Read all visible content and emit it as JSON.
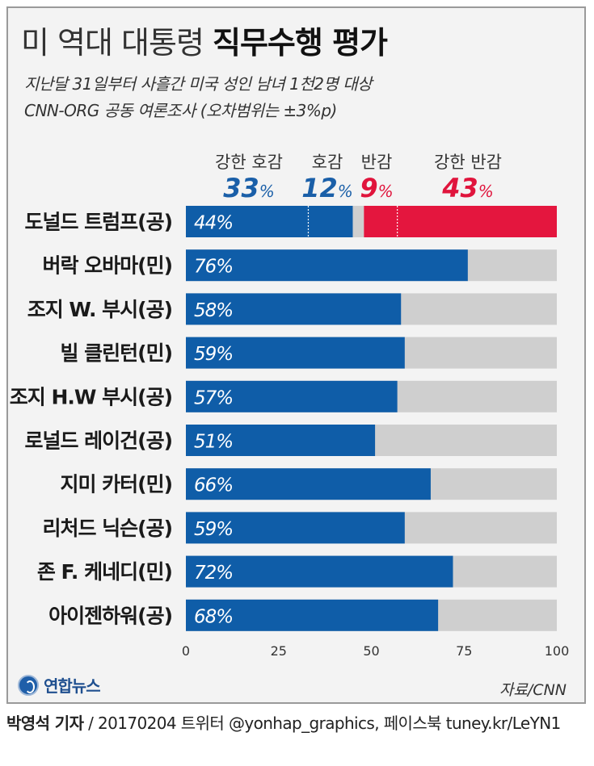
{
  "header": {
    "title_light": "미 역대 대통령",
    "title_bold": "직무수행 평가",
    "subtitle_1": "지난달 31일부터 사흘간 미국 성인 남녀 1천2명 대상",
    "subtitle_2": "CNN-ORG 공동 여론조사 (오차범위는 ±3%p)"
  },
  "legend": [
    {
      "label": "강한 호감",
      "value": "33",
      "unit": "%",
      "color": "#1a5fa8"
    },
    {
      "label": "호감",
      "value": "12",
      "unit": "%",
      "color": "#1a5fa8"
    },
    {
      "label": "반감",
      "value": "9",
      "unit": "%",
      "color": "#e0143c"
    },
    {
      "label": "강한 반감",
      "value": "43",
      "unit": "%",
      "color": "#e0143c"
    }
  ],
  "chart_data": {
    "type": "bar",
    "orientation": "horizontal",
    "xlim": [
      0,
      100
    ],
    "xticks": [
      0,
      25,
      50,
      75,
      100
    ],
    "colors": {
      "approve": "#0f5da8",
      "rest": "#cfcfcf",
      "disapprove": "#e4163e",
      "neutral_gap": "#cfcfcf"
    },
    "categories": [
      "도널드 트럼프(공)",
      "버락 오바마(민)",
      "조지 W. 부시(공)",
      "빌 클린턴(민)",
      "조지 H.W 부시(공)",
      "로널드 레이건(공)",
      "지미 카터(민)",
      "리처드 닉슨(공)",
      "존 F. 케네디(민)",
      "아이젠하워(공)"
    ],
    "values": [
      44,
      76,
      58,
      59,
      57,
      51,
      66,
      59,
      72,
      68
    ],
    "value_labels": [
      "44%",
      "76%",
      "58%",
      "59%",
      "57%",
      "51%",
      "66%",
      "59%",
      "72%",
      "68%"
    ],
    "trump_breakdown": {
      "strong_approve": 33,
      "approve": 12,
      "disapprove": 9,
      "strong_disapprove": 43
    }
  },
  "footer": {
    "logo_text": "연합뉴스",
    "source": "자료/CNN",
    "reporter": "박영석 기자",
    "credit_rest": " / 20170204  트위터 @yonhap_graphics, 페이스북 tuney.kr/LeYN1"
  }
}
